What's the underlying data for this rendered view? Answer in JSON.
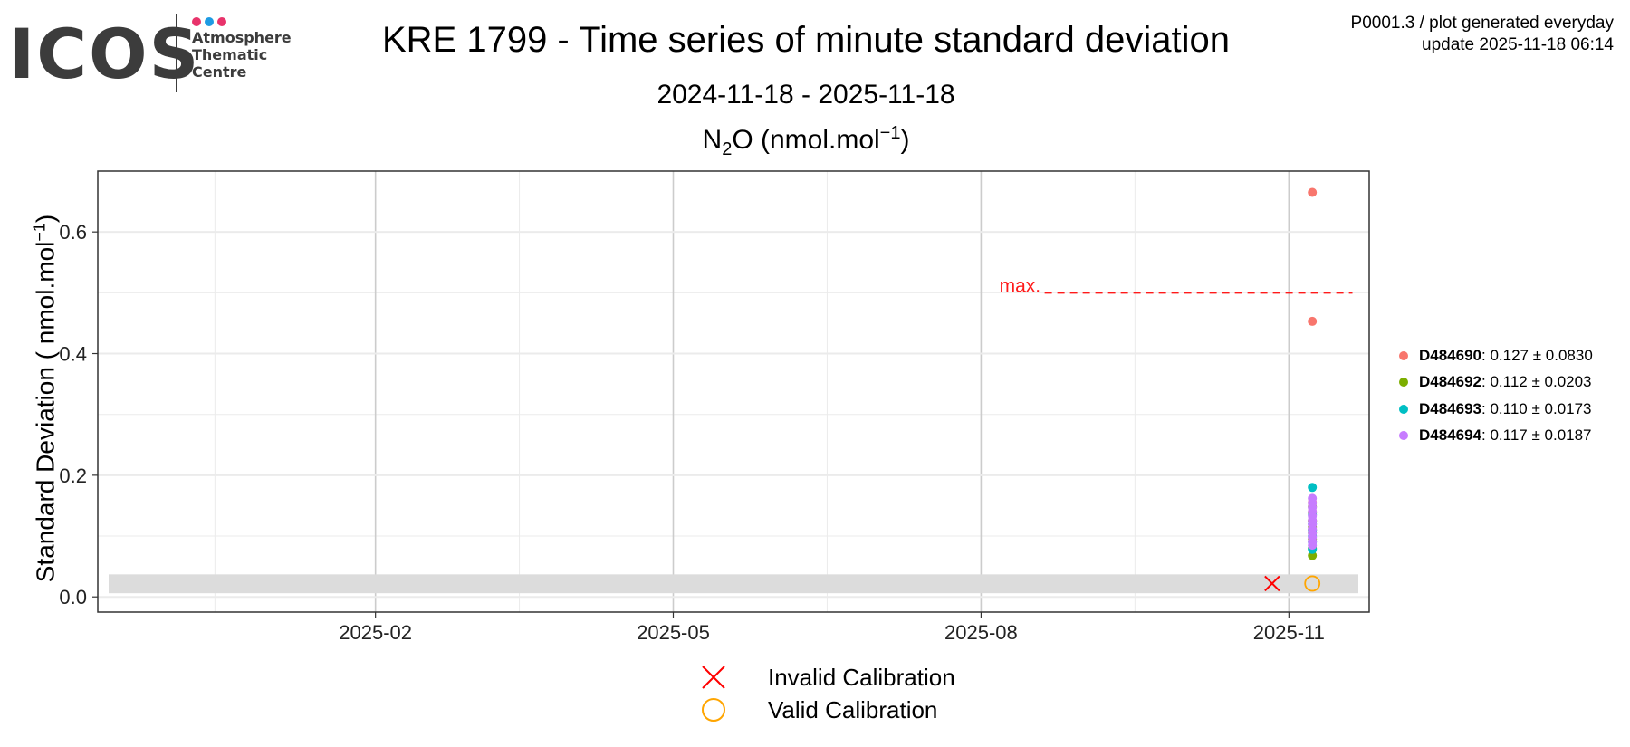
{
  "logo": {
    "word": "ICOS",
    "line1": "Atmosphere",
    "line2": "Thematic",
    "line3": "Centre",
    "dot_colors": [
      "#e8336b",
      "#1e9be3",
      "#e8336b"
    ]
  },
  "header": {
    "title": "KRE 1799 - Time series of minute standard deviation",
    "date_range": "2024-11-18 - 2025-11-18",
    "plot_title_base": "N",
    "plot_title_sub": "2",
    "plot_title_rest": "O (nmol.mol",
    "plot_title_sup": "−1",
    "plot_title_end": ")"
  },
  "meta": {
    "line1": "P0001.3 / plot generated everyday",
    "line2": "update  2025-11-18 06:14"
  },
  "axes": {
    "ylabel_main": "Standard Deviation ( nmol.mol",
    "ylabel_sup": "−1",
    "ylabel_end": ")"
  },
  "chart_data": {
    "type": "scatter",
    "x_type": "date",
    "xlim": [
      "2024-11-10",
      "2025-11-25"
    ],
    "ylim": [
      -0.025,
      0.7
    ],
    "x_ticks": [
      {
        "date": "2025-02-01",
        "label": "2025-02"
      },
      {
        "date": "2025-05-01",
        "label": "2025-05"
      },
      {
        "date": "2025-08-01",
        "label": "2025-08"
      },
      {
        "date": "2025-11-01",
        "label": "2025-11"
      }
    ],
    "x_minor_ticks": [
      "2024-12-15",
      "2025-03-16",
      "2025-06-16",
      "2025-09-16"
    ],
    "y_ticks": [
      0.0,
      0.2,
      0.4,
      0.6
    ],
    "y_tick_labels": [
      "0.0",
      "0.2",
      "0.4",
      "0.6"
    ],
    "y_minor_ticks": [
      0.1,
      0.3,
      0.5
    ],
    "grid": true,
    "band": {
      "y_min": 0.006,
      "y_max": 0.037,
      "color": "#dcdcdc"
    },
    "threshold": {
      "y": 0.5,
      "label": "max.",
      "color": "#ff1a1a",
      "x_start": "2025-08-20",
      "x_end": "2025-11-20"
    },
    "series": [
      {
        "name": "D484690",
        "color": "#f8766d",
        "stats": ": 0.127 ± 0.0830",
        "x": [
          "2025-11-08",
          "2025-11-08",
          "2025-11-08",
          "2025-11-08",
          "2025-11-08",
          "2025-11-08"
        ],
        "y": [
          0.665,
          0.453,
          0.155,
          0.14,
          0.125,
          0.11
        ]
      },
      {
        "name": "D484692",
        "color": "#7cae00",
        "stats": ": 0.112 ± 0.0203",
        "x": [
          "2025-11-08",
          "2025-11-08",
          "2025-11-08",
          "2025-11-08",
          "2025-11-08",
          "2025-11-08",
          "2025-11-08",
          "2025-11-08"
        ],
        "y": [
          0.148,
          0.138,
          0.125,
          0.115,
          0.105,
          0.095,
          0.08,
          0.068
        ]
      },
      {
        "name": "D484693",
        "color": "#00bfc4",
        "stats": ": 0.110 ± 0.0173",
        "x": [
          "2025-11-08",
          "2025-11-08",
          "2025-11-08",
          "2025-11-08",
          "2025-11-08",
          "2025-11-08",
          "2025-11-08"
        ],
        "y": [
          0.18,
          0.135,
          0.12,
          0.11,
          0.1,
          0.09,
          0.078
        ]
      },
      {
        "name": "D484694",
        "color": "#c77cff",
        "stats": ": 0.117 ± 0.0187",
        "x": [
          "2025-11-08",
          "2025-11-08",
          "2025-11-08",
          "2025-11-08",
          "2025-11-08",
          "2025-11-08",
          "2025-11-08",
          "2025-11-08",
          "2025-11-08",
          "2025-11-08",
          "2025-11-08",
          "2025-11-08"
        ],
        "y": [
          0.162,
          0.154,
          0.147,
          0.14,
          0.133,
          0.126,
          0.119,
          0.112,
          0.105,
          0.098,
          0.091,
          0.085
        ]
      }
    ],
    "calibrations": [
      {
        "name": "Invalid Calibration",
        "marker": "x",
        "color": "#ff0000",
        "x": "2025-10-27",
        "y": 0.022
      },
      {
        "name": "Valid Calibration",
        "marker": "o",
        "color": "#ffa500",
        "x": "2025-11-08",
        "y": 0.022
      }
    ]
  }
}
